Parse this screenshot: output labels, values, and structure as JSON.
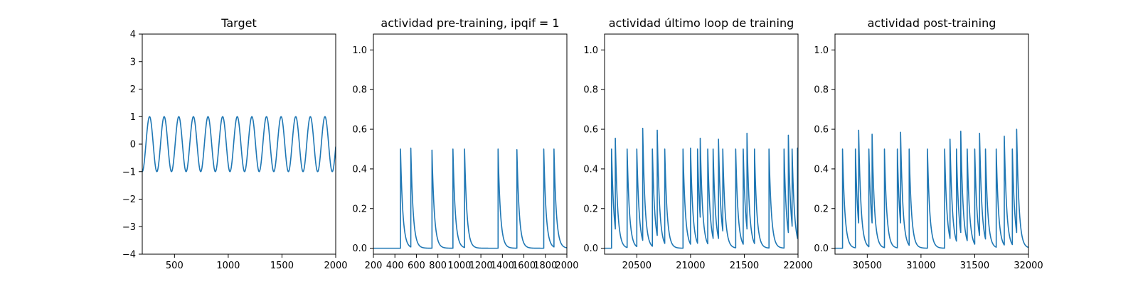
{
  "chart_data": [
    {
      "type": "line",
      "title": "Target",
      "xlabel": "",
      "ylabel": "",
      "xlim": [
        200,
        2000
      ],
      "ylim": [
        -4,
        4
      ],
      "xticks": [
        500,
        1000,
        1500,
        2000
      ],
      "yticks": [
        -4,
        -3,
        -2,
        -1,
        0,
        1,
        2,
        3,
        4
      ],
      "xtick_labels": [
        "500",
        "1000",
        "1500",
        "2000"
      ],
      "ytick_labels": [
        "−4",
        "−3",
        "−2",
        "−1",
        "0",
        "1",
        "2",
        "3",
        "4"
      ],
      "grid": false,
      "series": [
        {
          "name": "target",
          "color": "#1f77b4",
          "kind": "sine",
          "amplitude": 1,
          "period": 136,
          "phase_min_at": 200
        }
      ]
    },
    {
      "type": "line",
      "title": "actividad pre-training, ipqif = 1",
      "xlabel": "",
      "ylabel": "",
      "xlim": [
        200,
        2000
      ],
      "ylim": [
        -0.03,
        1.08
      ],
      "xticks": [
        200,
        400,
        600,
        800,
        1000,
        1200,
        1400,
        1600,
        1800,
        2000
      ],
      "yticks": [
        0.0,
        0.2,
        0.4,
        0.6,
        0.8,
        1.0
      ],
      "xtick_labels": [
        "200",
        "400",
        "600",
        "800",
        "1000",
        "1200",
        "1400",
        "1600",
        "1800",
        "2000"
      ],
      "ytick_labels": [
        "0.0",
        "0.2",
        "0.4",
        "0.6",
        "0.8",
        "1.0"
      ],
      "grid": false,
      "series": [
        {
          "name": "activity",
          "color": "#1f77b4",
          "kind": "spikes",
          "decay": 22,
          "spikes": [
            [
              452,
              0.5
            ],
            [
              548,
              0.505
            ],
            [
              745,
              0.495
            ],
            [
              940,
              0.5
            ],
            [
              1048,
              0.5
            ],
            [
              1360,
              0.5
            ],
            [
              1535,
              0.497
            ],
            [
              1785,
              0.5
            ],
            [
              1880,
              0.5
            ]
          ]
        }
      ]
    },
    {
      "type": "line",
      "title": "actividad último loop de training",
      "xlabel": "",
      "ylabel": "",
      "xlim": [
        20200,
        22000
      ],
      "ylim": [
        -0.03,
        1.08
      ],
      "xticks": [
        20500,
        21000,
        21500,
        22000
      ],
      "yticks": [
        0.0,
        0.2,
        0.4,
        0.6,
        0.8,
        1.0
      ],
      "xtick_labels": [
        "20500",
        "21000",
        "21500",
        "22000"
      ],
      "ytick_labels": [
        "0.0",
        "0.2",
        "0.4",
        "0.6",
        "0.8",
        "1.0"
      ],
      "grid": false,
      "series": [
        {
          "name": "activity",
          "color": "#1f77b4",
          "kind": "spikes",
          "decay": 22,
          "spikes": [
            [
              20265,
              0.5
            ],
            [
              20300,
              0.555
            ],
            [
              20410,
              0.5
            ],
            [
              20500,
              0.5
            ],
            [
              20555,
              0.605
            ],
            [
              20645,
              0.5
            ],
            [
              20690,
              0.595
            ],
            [
              20760,
              0.5
            ],
            [
              20930,
              0.5
            ],
            [
              21000,
              0.505
            ],
            [
              21065,
              0.5
            ],
            [
              21090,
              0.555
            ],
            [
              21160,
              0.5
            ],
            [
              21210,
              0.5
            ],
            [
              21260,
              0.55
            ],
            [
              21300,
              0.5
            ],
            [
              21420,
              0.5
            ],
            [
              21490,
              0.5
            ],
            [
              21525,
              0.58
            ],
            [
              21595,
              0.5
            ],
            [
              21730,
              0.5
            ],
            [
              21870,
              0.5
            ],
            [
              21910,
              0.57
            ],
            [
              21945,
              0.5
            ],
            [
              21995,
              0.505
            ]
          ]
        }
      ]
    },
    {
      "type": "line",
      "title": "actividad post-training",
      "xlabel": "",
      "ylabel": "",
      "xlim": [
        30200,
        32000
      ],
      "ylim": [
        -0.03,
        1.08
      ],
      "xticks": [
        30500,
        31000,
        31500,
        32000
      ],
      "yticks": [
        0.0,
        0.2,
        0.4,
        0.6,
        0.8,
        1.0
      ],
      "xtick_labels": [
        "30500",
        "31000",
        "31500",
        "32000"
      ],
      "ytick_labels": [
        "0.0",
        "0.2",
        "0.4",
        "0.6",
        "0.8",
        "1.0"
      ],
      "grid": false,
      "series": [
        {
          "name": "activity",
          "color": "#1f77b4",
          "kind": "spikes",
          "decay": 22,
          "spikes": [
            [
              30270,
              0.5
            ],
            [
              30390,
              0.5
            ],
            [
              30420,
              0.595
            ],
            [
              30515,
              0.5
            ],
            [
              30545,
              0.575
            ],
            [
              30660,
              0.5
            ],
            [
              30780,
              0.5
            ],
            [
              30810,
              0.585
            ],
            [
              30890,
              0.5
            ],
            [
              31060,
              0.5
            ],
            [
              31220,
              0.5
            ],
            [
              31270,
              0.55
            ],
            [
              31330,
              0.5
            ],
            [
              31370,
              0.59
            ],
            [
              31430,
              0.5
            ],
            [
              31500,
              0.5
            ],
            [
              31545,
              0.58
            ],
            [
              31600,
              0.5
            ],
            [
              31700,
              0.5
            ],
            [
              31775,
              0.565
            ],
            [
              31850,
              0.5
            ],
            [
              31890,
              0.6
            ]
          ]
        }
      ]
    }
  ]
}
